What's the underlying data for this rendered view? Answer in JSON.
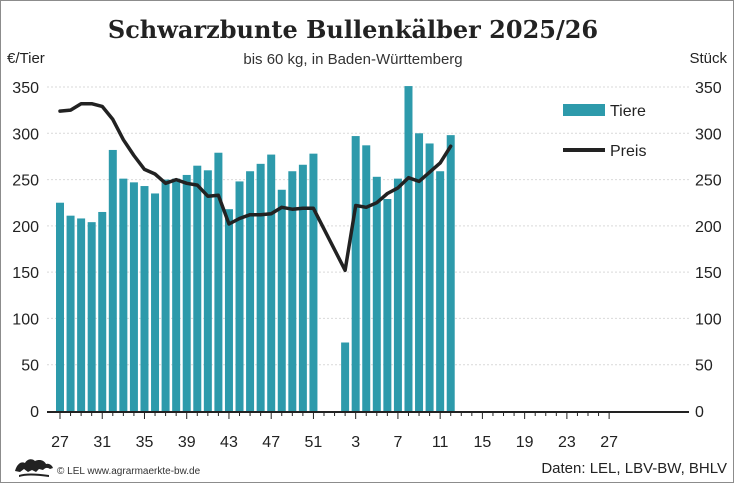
{
  "chart_data": {
    "type": "bar",
    "title": "Schwarzbunte Bullenkälber 2025/26",
    "subtitle": "bis 60 kg, in Baden-Württemberg",
    "y_left_label": "€/Tier",
    "y_right_label": "Stück",
    "ylim": [
      0,
      350
    ],
    "y_ticks": [
      0,
      50,
      100,
      150,
      200,
      250,
      300,
      350
    ],
    "grid": true,
    "legend_position": "top-right",
    "x_tick_labels": [
      "27",
      "31",
      "35",
      "39",
      "43",
      "47",
      "51",
      "3",
      "7",
      "11",
      "15",
      "19",
      "23",
      "27"
    ],
    "weeks": [
      "27",
      "28",
      "29",
      "30",
      "31",
      "32",
      "33",
      "34",
      "35",
      "36",
      "37",
      "38",
      "39",
      "40",
      "41",
      "42",
      "43",
      "44",
      "45",
      "46",
      "47",
      "48",
      "49",
      "50",
      "51",
      "52",
      "1",
      "2",
      "3",
      "4",
      "5",
      "6",
      "7",
      "8",
      "9",
      "10",
      "11",
      "12",
      "13",
      "14",
      "15",
      "16",
      "17",
      "18",
      "19",
      "20",
      "21",
      "22",
      "23",
      "24",
      "25",
      "26",
      "27"
    ],
    "series": [
      {
        "name": "Tiere",
        "kind": "bar",
        "color": "#2d9aab",
        "values": [
          225,
          211,
          208,
          204,
          215,
          282,
          251,
          247,
          243,
          235,
          250,
          251,
          255,
          265,
          260,
          279,
          218,
          248,
          259,
          267,
          277,
          239,
          259,
          266,
          278,
          null,
          null,
          74,
          297,
          287,
          253,
          229,
          251,
          351,
          300,
          289,
          259,
          298,
          null,
          null,
          null,
          null,
          null,
          null,
          null,
          null,
          null,
          null,
          null,
          null,
          null,
          null,
          null
        ]
      },
      {
        "name": "Preis",
        "kind": "line",
        "color": "#222222",
        "values": [
          324,
          325,
          332,
          332,
          329,
          315,
          293,
          276,
          261,
          256,
          246,
          250,
          246,
          244,
          232,
          233,
          202,
          208,
          212,
          212,
          213,
          220,
          218,
          219,
          219,
          null,
          null,
          152,
          222,
          220,
          225,
          235,
          241,
          252,
          248,
          258,
          268,
          286,
          null,
          null,
          null,
          null,
          null,
          null,
          null,
          null,
          null,
          null,
          null,
          null,
          null,
          null,
          null
        ]
      }
    ]
  },
  "footer": {
    "source_left": "© LEL www.agrarmaerkte-bw.de",
    "source_right": "Daten: LEL, LBV-BW, BHLV"
  },
  "colors": {
    "bar": "#2d9aab",
    "line": "#222222",
    "grid": "#d9d9d9"
  }
}
